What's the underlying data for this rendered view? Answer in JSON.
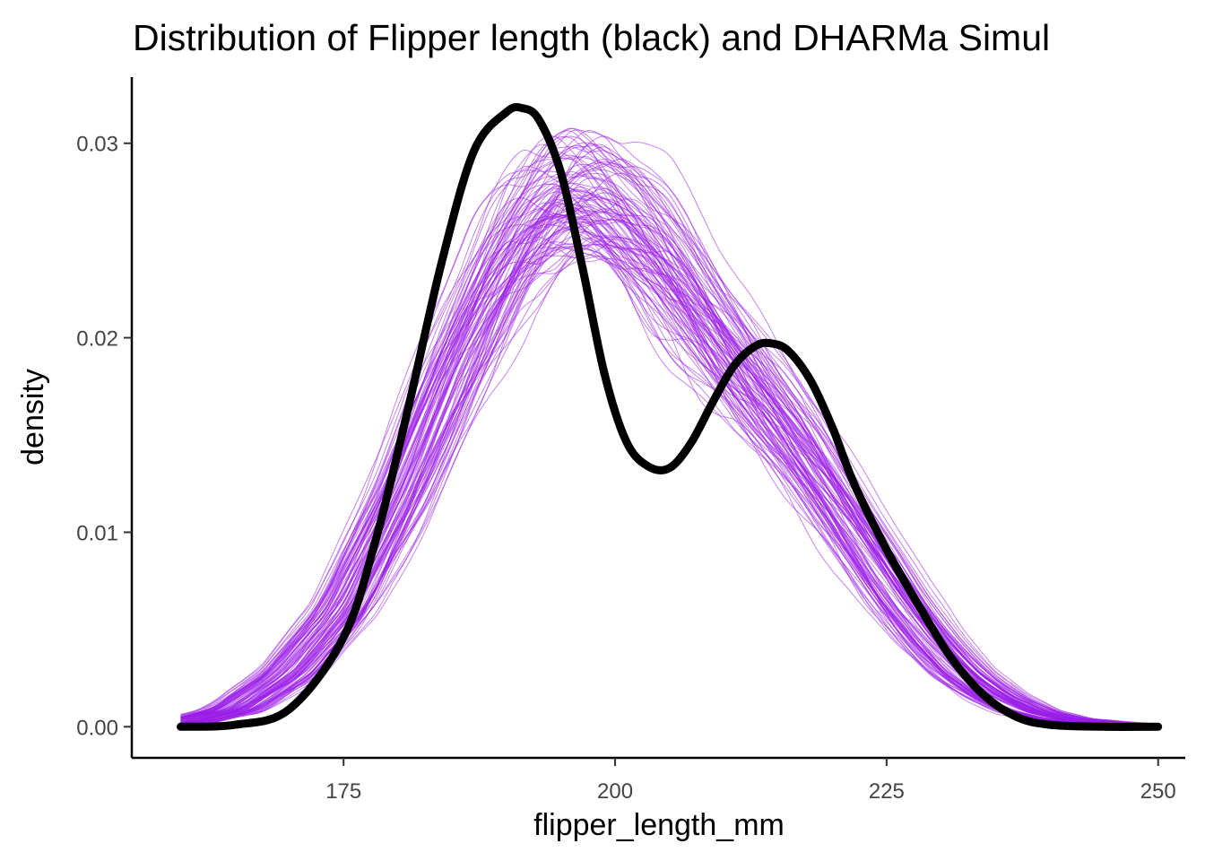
{
  "chart_data": {
    "type": "line",
    "title": "Distribution of Flipper length (black) and DHARMa Simul",
    "xlabel": "flipper_length_mm",
    "ylabel": "density",
    "xlim": [
      155.5,
      252.5
    ],
    "ylim": [
      -0.0016,
      0.0334
    ],
    "x_ticks": [
      175,
      200,
      225,
      250
    ],
    "x_tick_labels": [
      "175",
      "200",
      "225",
      "250"
    ],
    "y_ticks": [
      0.0,
      0.01,
      0.02,
      0.03
    ],
    "y_tick_labels": [
      "0.00",
      "0.01",
      "0.02",
      "0.03"
    ],
    "grid": false,
    "colors": {
      "observed": "#000000",
      "simulated": "#9b1ee8"
    },
    "observed": {
      "name": "Flipper length (black)",
      "x": [
        160,
        165,
        170,
        175,
        178,
        181,
        184,
        187,
        190,
        191.5,
        193,
        195,
        197,
        199,
        201,
        203,
        205,
        207,
        209,
        211,
        213,
        214.5,
        216,
        218,
        220,
        222,
        225,
        228,
        231,
        234,
        237,
        240,
        245,
        250
      ],
      "y": [
        0.0,
        0.0001,
        0.0009,
        0.0046,
        0.0097,
        0.0165,
        0.0238,
        0.0296,
        0.0316,
        0.0318,
        0.0312,
        0.0285,
        0.0236,
        0.0182,
        0.0147,
        0.0134,
        0.0133,
        0.0146,
        0.0167,
        0.0186,
        0.0196,
        0.0197,
        0.0193,
        0.0178,
        0.0154,
        0.0125,
        0.0091,
        0.0062,
        0.0035,
        0.0016,
        0.0005,
        0.0001,
        0.0,
        0.0
      ]
    },
    "simulated_summary": {
      "name": "DHARMa Simulations",
      "count": 100,
      "mean_x": [
        160,
        165,
        170,
        175,
        180,
        185,
        190,
        193,
        196,
        199,
        202,
        205,
        208,
        211,
        214,
        217,
        220,
        223,
        226,
        229,
        232,
        235,
        238,
        241,
        245,
        250
      ],
      "mean_y": [
        0.0002,
        0.0009,
        0.0028,
        0.0062,
        0.0118,
        0.0185,
        0.0245,
        0.0268,
        0.0278,
        0.0274,
        0.0258,
        0.0238,
        0.0214,
        0.0191,
        0.0168,
        0.0145,
        0.012,
        0.0094,
        0.0068,
        0.0046,
        0.0028,
        0.0016,
        0.0008,
        0.0004,
        0.0002,
        0.0001
      ]
    }
  }
}
